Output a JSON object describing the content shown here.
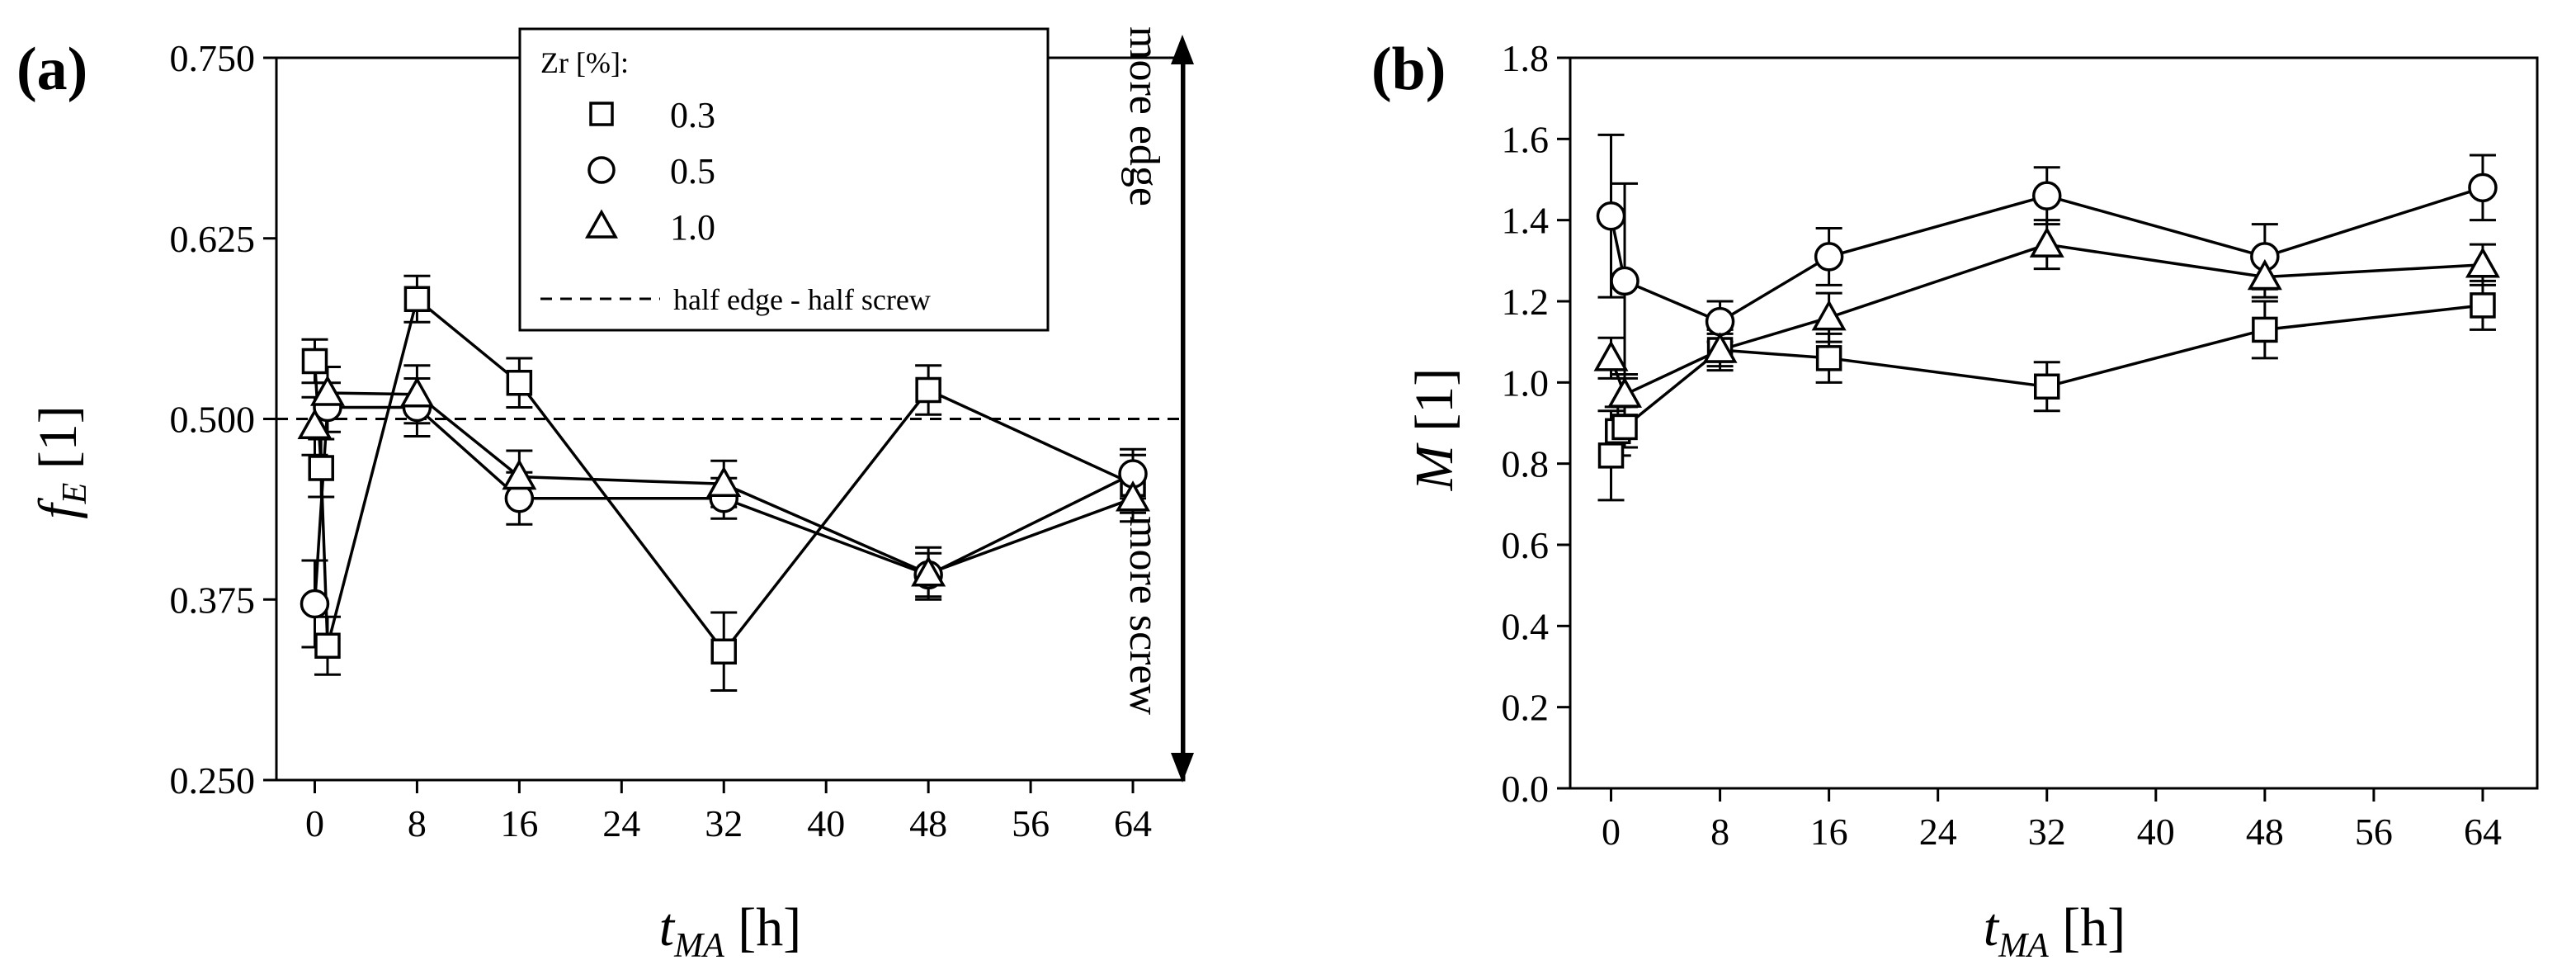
{
  "chart_data": [
    {
      "panel_label": "(a)",
      "type": "line",
      "ylabel_main": "f",
      "ylabel_sub": "E",
      "ylabel_units": " [1]",
      "xlabel_main": "t",
      "xlabel_sub": "MA",
      "xlabel_units": " [h]",
      "xlim": [
        -3,
        68
      ],
      "ylim": [
        0.25,
        0.75
      ],
      "xticks": [
        0,
        8,
        16,
        24,
        32,
        40,
        48,
        56,
        64
      ],
      "xtick_labels": [
        "0",
        "8",
        "16",
        "24",
        "32",
        "40",
        "48",
        "56",
        "64"
      ],
      "yticks": [
        0.25,
        0.375,
        0.5,
        0.625,
        0.75
      ],
      "ytick_labels": [
        "0.250",
        "0.375",
        "0.500",
        "0.625",
        "0.750"
      ],
      "legend": {
        "title": "Zr [%]:",
        "entries": [
          "0.3",
          "0.5",
          "1.0"
        ],
        "reference_line_label": "half edge - half screw"
      },
      "reference_line_y": 0.5,
      "annotations": {
        "top": "more edge",
        "bottom": "more screw"
      },
      "series": [
        {
          "name": "0.3",
          "marker": "square",
          "x": [
            0,
            0.5,
            1,
            8,
            16,
            32,
            48,
            64
          ],
          "y": [
            0.54,
            0.466,
            0.343,
            0.583,
            0.525,
            0.339,
            0.52,
            0.455
          ],
          "err": [
            0.015,
            0.02,
            0.02,
            0.016,
            0.017,
            0.027,
            0.017,
            0.02
          ]
        },
        {
          "name": "0.5",
          "marker": "circle",
          "x": [
            0,
            1,
            8,
            16,
            32,
            48,
            64
          ],
          "y": [
            0.372,
            0.508,
            0.508,
            0.445,
            0.445,
            0.392,
            0.462
          ],
          "err": [
            0.03,
            0.017,
            0.02,
            0.018,
            0.014,
            0.015,
            0.017
          ]
        },
        {
          "name": "1.0",
          "marker": "triangle",
          "x": [
            0,
            1,
            8,
            16,
            32,
            48,
            64
          ],
          "y": [
            0.495,
            0.518,
            0.517,
            0.46,
            0.455,
            0.393,
            0.445
          ],
          "err": [
            0.02,
            0.018,
            0.02,
            0.018,
            0.016,
            0.018,
            0.016
          ]
        }
      ]
    },
    {
      "panel_label": "(b)",
      "type": "line",
      "ylabel_main": "M",
      "ylabel_units": " [1]",
      "xlabel_main": "t",
      "xlabel_sub": "MA",
      "xlabel_units": " [h]",
      "xlim": [
        -3,
        68
      ],
      "ylim": [
        0,
        1.8
      ],
      "xticks": [
        0,
        8,
        16,
        24,
        32,
        40,
        48,
        56,
        64
      ],
      "xtick_labels": [
        "0",
        "8",
        "16",
        "24",
        "32",
        "40",
        "48",
        "56",
        "64"
      ],
      "yticks": [
        0,
        0.2,
        0.4,
        0.6,
        0.8,
        1.0,
        1.2,
        1.4,
        1.6,
        1.8
      ],
      "ytick_labels": [
        "0.0",
        "0.2",
        "0.4",
        "0.6",
        "0.8",
        "1.0",
        "1.2",
        "1.4",
        "1.6",
        "1.8"
      ],
      "series": [
        {
          "name": "0.3",
          "marker": "square",
          "x": [
            0,
            0.5,
            1,
            8,
            16,
            32,
            48,
            64
          ],
          "y": [
            0.82,
            0.88,
            0.89,
            1.08,
            1.06,
            0.99,
            1.13,
            1.19
          ],
          "err": [
            0.11,
            0.06,
            0.05,
            0.04,
            0.06,
            0.06,
            0.07,
            0.06
          ]
        },
        {
          "name": "0.5",
          "marker": "circle",
          "x": [
            0,
            1,
            8,
            16,
            32,
            48,
            64
          ],
          "y": [
            1.41,
            1.25,
            1.15,
            1.31,
            1.46,
            1.31,
            1.48
          ],
          "err": [
            0.2,
            0.24,
            0.05,
            0.07,
            0.07,
            0.08,
            0.08
          ]
        },
        {
          "name": "1.0",
          "marker": "triangle",
          "x": [
            0,
            1,
            8,
            16,
            32,
            48,
            64
          ],
          "y": [
            1.06,
            0.97,
            1.08,
            1.16,
            1.34,
            1.26,
            1.29
          ],
          "err": [
            0.05,
            0.05,
            0.05,
            0.06,
            0.06,
            0.05,
            0.05
          ]
        }
      ]
    }
  ]
}
